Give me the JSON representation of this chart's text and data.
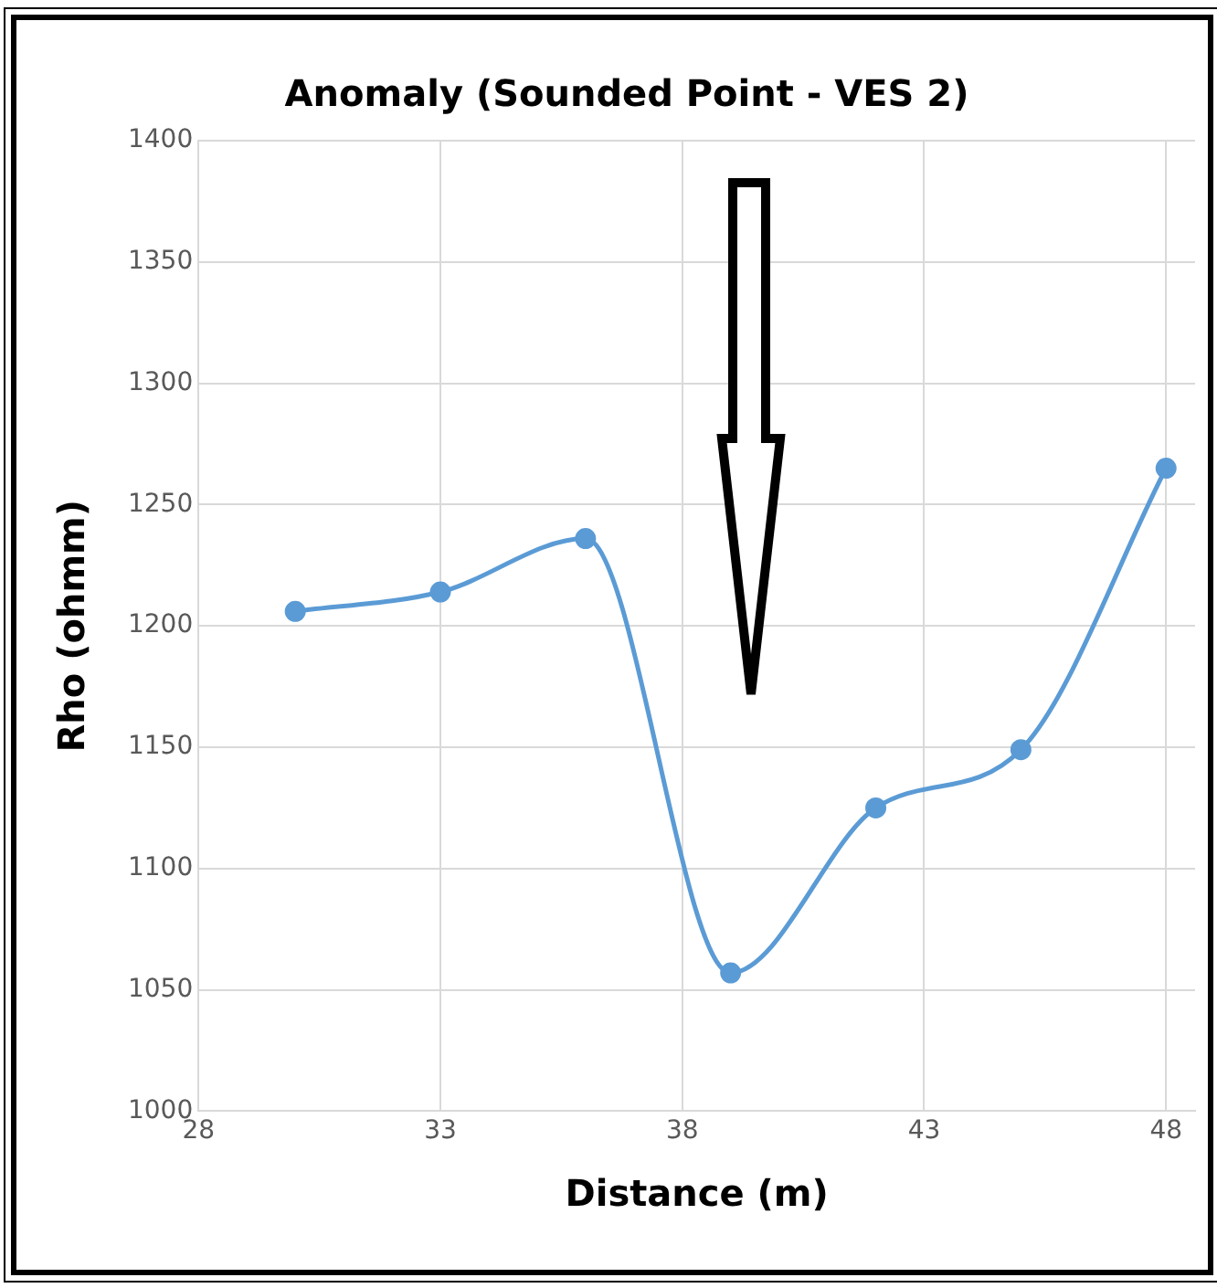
{
  "chart_data": {
    "type": "line",
    "title": "Anomaly (Sounded Point - VES 2)",
    "xlabel": "Distance (m)",
    "ylabel": "Rho (ohmm)",
    "x": [
      30,
      33,
      36,
      39,
      42,
      45,
      48
    ],
    "series": [
      {
        "color": "#5b9bd5",
        "values": [
          1206,
          1214,
          1236,
          1057,
          1125,
          1149,
          1265
        ]
      }
    ],
    "xlim": [
      28,
      48.6
    ],
    "xticks": [
      28,
      33,
      38,
      43,
      48
    ],
    "ylim": [
      1000,
      1400
    ],
    "yticks": [
      1000,
      1050,
      1100,
      1150,
      1200,
      1250,
      1300,
      1350,
      1400
    ],
    "grid": true,
    "legend": false,
    "marker": "circle",
    "line_style": "solid"
  }
}
